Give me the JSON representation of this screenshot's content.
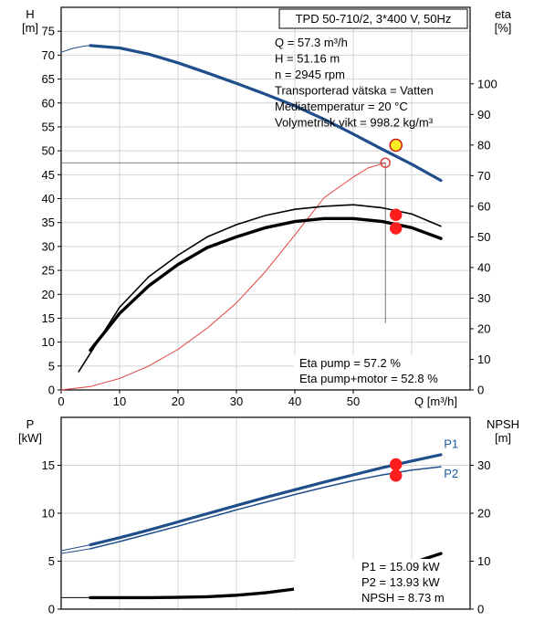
{
  "chart_data": [
    {
      "type": "line",
      "title": "TPD 50-710/2, 3*400 V, 50Hz",
      "xlabel": "Q [m³/h]",
      "xlim": [
        0,
        70
      ],
      "x_ticks": [
        0,
        10,
        20,
        30,
        40,
        50
      ],
      "left_axis": {
        "label": "H",
        "unit": "[m]",
        "ylim": [
          0,
          80
        ],
        "ticks": [
          0,
          5,
          10,
          15,
          20,
          25,
          30,
          35,
          40,
          45,
          50,
          55,
          60,
          65,
          70,
          75
        ]
      },
      "right_axis": {
        "label": "eta",
        "unit": "[%]",
        "ylim": [
          0,
          125
        ],
        "ticks": [
          0,
          10,
          20,
          30,
          40,
          50,
          60,
          70,
          80,
          90,
          100
        ]
      },
      "grid": true,
      "info_lines": [
        "Q = 57.3 m³/h",
        "H = 51.16 m",
        "n = 2945 rpm",
        "Transporterad vätska = Vatten",
        "Mediatemperatur = 20 °C",
        "Volymetrisk vikt = 998.2 kg/m³"
      ],
      "result_lines": [
        "Eta pump = 57.2 %",
        "Eta pump+motor = 52.8 %"
      ],
      "series": [
        {
          "key": "head",
          "axis": "left",
          "color": "#1f4e8a",
          "width": 3.2,
          "x": [
            5,
            10,
            15,
            20,
            25,
            30,
            35,
            40,
            45,
            50,
            55,
            60,
            65
          ],
          "y": [
            72,
            71.5,
            70.2,
            68.4,
            66.3,
            64.1,
            61.8,
            59.4,
            56.6,
            53.5,
            50.3,
            47.2,
            43.8
          ]
        },
        {
          "key": "head_ext",
          "axis": "left",
          "color": "#1f4e8a",
          "width": 1,
          "x": [
            0,
            2,
            4,
            5
          ],
          "y": [
            70.6,
            71.4,
            71.9,
            72
          ]
        },
        {
          "key": "system_curve",
          "axis": "left",
          "color": "#e04040",
          "width": 1,
          "x": [
            0,
            5,
            10,
            15,
            20,
            25,
            30,
            35,
            40,
            45,
            50,
            52.5,
            55.5
          ],
          "y": [
            0,
            0.7,
            2.4,
            5,
            8.5,
            12.9,
            18.2,
            24.8,
            32.4,
            40.2,
            44.5,
            46.4,
            47.5
          ]
        },
        {
          "key": "eta_pump",
          "axis": "right",
          "color": "#000000",
          "width": 1.6,
          "x": [
            3,
            10,
            15,
            20,
            25,
            30,
            35,
            40,
            45,
            50,
            55,
            60,
            65
          ],
          "y": [
            6,
            27,
            37,
            44,
            50,
            54,
            57,
            59,
            60,
            60.5,
            59.5,
            57.5,
            53.5
          ]
        },
        {
          "key": "eta_pump_motor",
          "axis": "right",
          "color": "#000000",
          "width": 3.4,
          "x": [
            5,
            10,
            15,
            20,
            25,
            30,
            35,
            40,
            45,
            50,
            55,
            60,
            65
          ],
          "y": [
            13,
            25,
            34,
            41,
            46.5,
            50,
            53,
            55,
            56,
            56,
            55,
            53,
            49.5
          ]
        }
      ],
      "duty_points": [
        {
          "axis": "left",
          "x": 57.3,
          "y": 51.16,
          "fill": "#ffee22",
          "stroke": "#d01818",
          "r": 6.5
        },
        {
          "axis": "left",
          "x": 55.5,
          "y": 47.5,
          "fill": "none",
          "stroke": "#e04040",
          "r": 5
        },
        {
          "axis": "right",
          "x": 57.3,
          "y": 57.2,
          "fill": "#ff1e1e",
          "stroke": "#ff1e1e",
          "r": 6
        },
        {
          "axis": "right",
          "x": 57.3,
          "y": 52.8,
          "fill": "#ff1e1e",
          "stroke": "#ff1e1e",
          "r": 6
        }
      ],
      "guides": [
        {
          "axis": "left",
          "x1": 0,
          "y1": 47.5,
          "x2": 55.5,
          "y2": 47.5
        },
        {
          "axis": "left",
          "x1": 55.5,
          "y1": 47.5,
          "x2": 55.5,
          "y2": 14
        }
      ]
    },
    {
      "type": "line",
      "xlim": [
        0,
        70
      ],
      "left_axis": {
        "label": "P",
        "unit": "[kW]",
        "ylim": [
          0,
          20
        ],
        "ticks": [
          0,
          5,
          10,
          15
        ]
      },
      "right_axis": {
        "label": "NPSH",
        "unit": "[m]",
        "ylim": [
          0,
          40
        ],
        "ticks": [
          0,
          10,
          20,
          30
        ]
      },
      "grid": true,
      "result_lines": [
        "P1 = 15.09 kW",
        "P2 = 13.93 kW",
        "NPSH = 8.73 m"
      ],
      "series_labels": [
        {
          "text": "P1",
          "x": 65.5,
          "y": 17.2
        },
        {
          "text": "P2",
          "x": 65.5,
          "y": 14.1
        }
      ],
      "series": [
        {
          "key": "P1",
          "axis": "left",
          "color": "#1f4e8a",
          "width": 3.2,
          "x": [
            5,
            10,
            15,
            20,
            25,
            30,
            35,
            40,
            45,
            50,
            55,
            60,
            65
          ],
          "y": [
            6.7,
            7.45,
            8.25,
            9.1,
            9.95,
            10.8,
            11.65,
            12.45,
            13.25,
            14.0,
            14.75,
            15.45,
            16.1
          ]
        },
        {
          "key": "P1_ext",
          "axis": "left",
          "color": "#1f4e8a",
          "width": 1,
          "x": [
            0,
            5
          ],
          "y": [
            6.1,
            6.7
          ]
        },
        {
          "key": "P2",
          "axis": "left",
          "color": "#1f4e8a",
          "width": 1.5,
          "x": [
            5,
            10,
            15,
            20,
            25,
            30,
            35,
            40,
            45,
            50,
            55,
            60,
            65
          ],
          "y": [
            6.3,
            7.05,
            7.85,
            8.65,
            9.5,
            10.35,
            11.15,
            11.95,
            12.7,
            13.4,
            14.0,
            14.5,
            14.85
          ]
        },
        {
          "key": "P2_ext",
          "axis": "left",
          "color": "#1f4e8a",
          "width": 1,
          "x": [
            0,
            5
          ],
          "y": [
            5.8,
            6.3
          ]
        },
        {
          "key": "NPSH",
          "axis": "right",
          "color": "#000000",
          "width": 3.4,
          "x": [
            5,
            10,
            15,
            20,
            25,
            30,
            35,
            40,
            45,
            50,
            55,
            60,
            65
          ],
          "y": [
            2.4,
            2.4,
            2.4,
            2.45,
            2.6,
            2.9,
            3.4,
            4.2,
            5.2,
            6.5,
            8.0,
            9.6,
            11.6
          ]
        },
        {
          "key": "NPSH_ext",
          "axis": "right",
          "color": "#000000",
          "width": 1,
          "x": [
            0,
            5
          ],
          "y": [
            2.4,
            2.4
          ]
        }
      ],
      "duty_points": [
        {
          "axis": "left",
          "x": 57.3,
          "y": 15.09,
          "fill": "#ff1e1e",
          "stroke": "#ff1e1e",
          "r": 6
        },
        {
          "axis": "left",
          "x": 57.3,
          "y": 13.93,
          "fill": "#ff1e1e",
          "stroke": "#ff1e1e",
          "r": 6
        }
      ]
    }
  ]
}
